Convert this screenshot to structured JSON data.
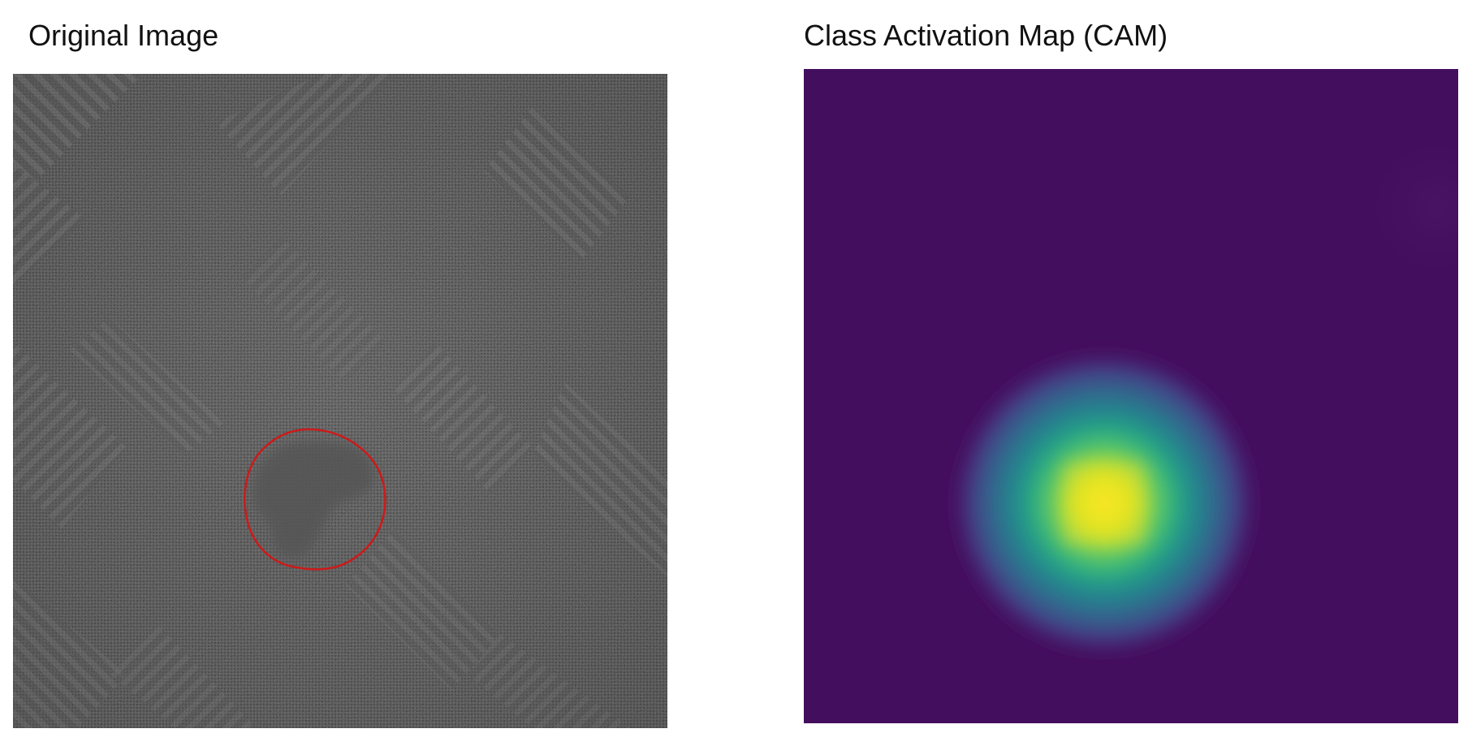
{
  "panels": {
    "original": {
      "title": "Original Image",
      "outline_color": "#cc1a1a"
    },
    "cam": {
      "title": "Class Activation Map (CAM)",
      "colormap": [
        "#440154",
        "#472d7b",
        "#3b528b",
        "#2c728e",
        "#21918c",
        "#28ae80",
        "#5ec962",
        "#addc30",
        "#fde725"
      ],
      "background_color": "#440e5e",
      "peak_color": "#fde725"
    }
  }
}
